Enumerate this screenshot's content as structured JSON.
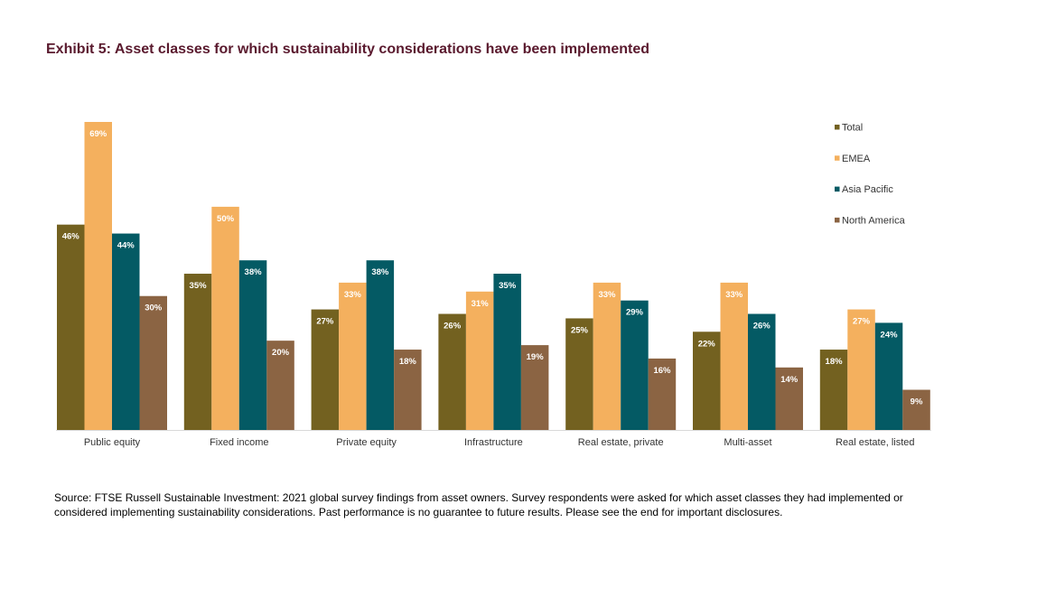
{
  "chart_data": {
    "type": "bar",
    "title": "Exhibit 5: Asset classes for which sustainability considerations have been implemented",
    "categories": [
      "Public equity",
      "Fixed income",
      "Private equity",
      "Infrastructure",
      "Real estate, private",
      "Multi-asset",
      "Real estate, listed"
    ],
    "series": [
      {
        "name": "Total",
        "color": "#736120",
        "values": [
          46,
          35,
          27,
          26,
          25,
          22,
          18
        ]
      },
      {
        "name": "EMEA",
        "color": "#f4b05e",
        "values": [
          69,
          50,
          33,
          31,
          33,
          33,
          27
        ]
      },
      {
        "name": "Asia Pacific",
        "color": "#045a64",
        "values": [
          44,
          38,
          38,
          35,
          29,
          26,
          24
        ]
      },
      {
        "name": "North America",
        "color": "#8b6443",
        "values": [
          30,
          20,
          18,
          19,
          16,
          14,
          9
        ]
      }
    ],
    "value_suffix": "%",
    "ylim": [
      0,
      69
    ],
    "grid": false,
    "legend_position": "top-right"
  },
  "source": {
    "line1": "Source: FTSE Russell Sustainable Investment: 2021 global survey findings from asset owners. Survey respondents were asked for which asset classes they had implemented or",
    "line2": "considered implementing sustainability considerations. Past performance is no guarantee to future results. Please see the end for important disclosures."
  }
}
